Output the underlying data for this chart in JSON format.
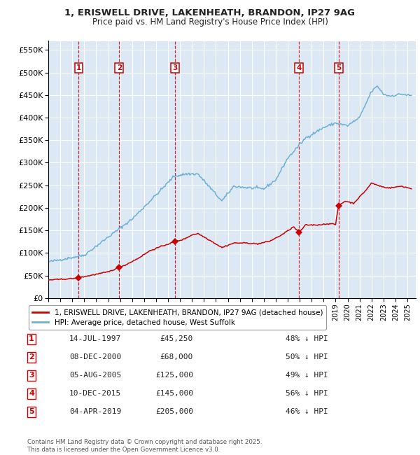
{
  "title_line1": "1, ERISWELL DRIVE, LAKENHEATH, BRANDON, IP27 9AG",
  "title_line2": "Price paid vs. HM Land Registry's House Price Index (HPI)",
  "ylabel_ticks": [
    "£0",
    "£50K",
    "£100K",
    "£150K",
    "£200K",
    "£250K",
    "£300K",
    "£350K",
    "£400K",
    "£450K",
    "£500K",
    "£550K"
  ],
  "ytick_values": [
    0,
    50000,
    100000,
    150000,
    200000,
    250000,
    300000,
    350000,
    400000,
    450000,
    500000,
    550000
  ],
  "ylim": [
    0,
    570000
  ],
  "hpi_color": "#6baed6",
  "price_color": "#cc0000",
  "bg_color": "#dce9f5",
  "grid_color": "#ffffff",
  "purchases": [
    {
      "num": 1,
      "date_x": 1997.54,
      "price": 45250,
      "label": "14-JUL-1997",
      "pct": "48% ↓ HPI"
    },
    {
      "num": 2,
      "date_x": 2000.93,
      "price": 68000,
      "label": "08-DEC-2000",
      "pct": "50% ↓ HPI"
    },
    {
      "num": 3,
      "date_x": 2005.59,
      "price": 125000,
      "label": "05-AUG-2005",
      "pct": "49% ↓ HPI"
    },
    {
      "num": 4,
      "date_x": 2015.94,
      "price": 145000,
      "label": "10-DEC-2015",
      "pct": "56% ↓ HPI"
    },
    {
      "num": 5,
      "date_x": 2019.25,
      "price": 205000,
      "label": "04-APR-2019",
      "pct": "46% ↓ HPI"
    }
  ],
  "legend_entries": [
    "1, ERISWELL DRIVE, LAKENHEATH, BRANDON, IP27 9AG (detached house)",
    "HPI: Average price, detached house, West Suffolk"
  ],
  "footnote": "Contains HM Land Registry data © Crown copyright and database right 2025.\nThis data is licensed under the Open Government Licence v3.0.",
  "xlim": [
    1995.0,
    2025.7
  ],
  "xtick_years": [
    1995,
    1996,
    1997,
    1998,
    1999,
    2000,
    2001,
    2002,
    2003,
    2004,
    2005,
    2006,
    2007,
    2008,
    2009,
    2010,
    2011,
    2012,
    2013,
    2014,
    2015,
    2016,
    2017,
    2018,
    2019,
    2020,
    2021,
    2022,
    2023,
    2024,
    2025
  ],
  "hpi_trend": {
    "1995.0": 80000,
    "1997.0": 90000,
    "1998.0": 95000,
    "2002.0": 175000,
    "2004.5": 242000,
    "2005.5": 270000,
    "2006.5": 275000,
    "2007.5": 275000,
    "2009.5": 215000,
    "2010.5": 248000,
    "2011.5": 245000,
    "2013.0": 242000,
    "2014.0": 262000,
    "2015.0": 310000,
    "2016.5": 355000,
    "2018.0": 378000,
    "2019.0": 388000,
    "2020.0": 382000,
    "2021.0": 400000,
    "2022.0": 458000,
    "2022.5": 470000,
    "2023.0": 452000,
    "2023.5": 448000,
    "2024.5": 452000,
    "2025.4": 448000
  },
  "price_trend": {
    "1995.0": 40000,
    "1997.0": 43000,
    "1997.54": 45250,
    "1998.5": 50000,
    "2000.0": 58000,
    "2000.93": 68000,
    "2001.5": 74000,
    "2002.5": 88000,
    "2003.5": 105000,
    "2004.5": 115000,
    "2005.59": 125000,
    "2006.3": 130000,
    "2007.0": 140000,
    "2007.5": 143000,
    "2008.5": 128000,
    "2009.5": 112000,
    "2010.5": 122000,
    "2011.5": 122000,
    "2012.5": 120000,
    "2013.5": 126000,
    "2014.5": 140000,
    "2015.5": 158000,
    "2015.94": 145000,
    "2016.5": 162000,
    "2017.5": 162000,
    "2018.5": 165000,
    "2019.0": 163000,
    "2019.25": 205000,
    "2019.8": 215000,
    "2020.5": 210000,
    "2021.5": 238000,
    "2022.0": 255000,
    "2022.5": 250000,
    "2023.0": 246000,
    "2023.5": 244000,
    "2024.5": 248000,
    "2025.4": 242000
  }
}
